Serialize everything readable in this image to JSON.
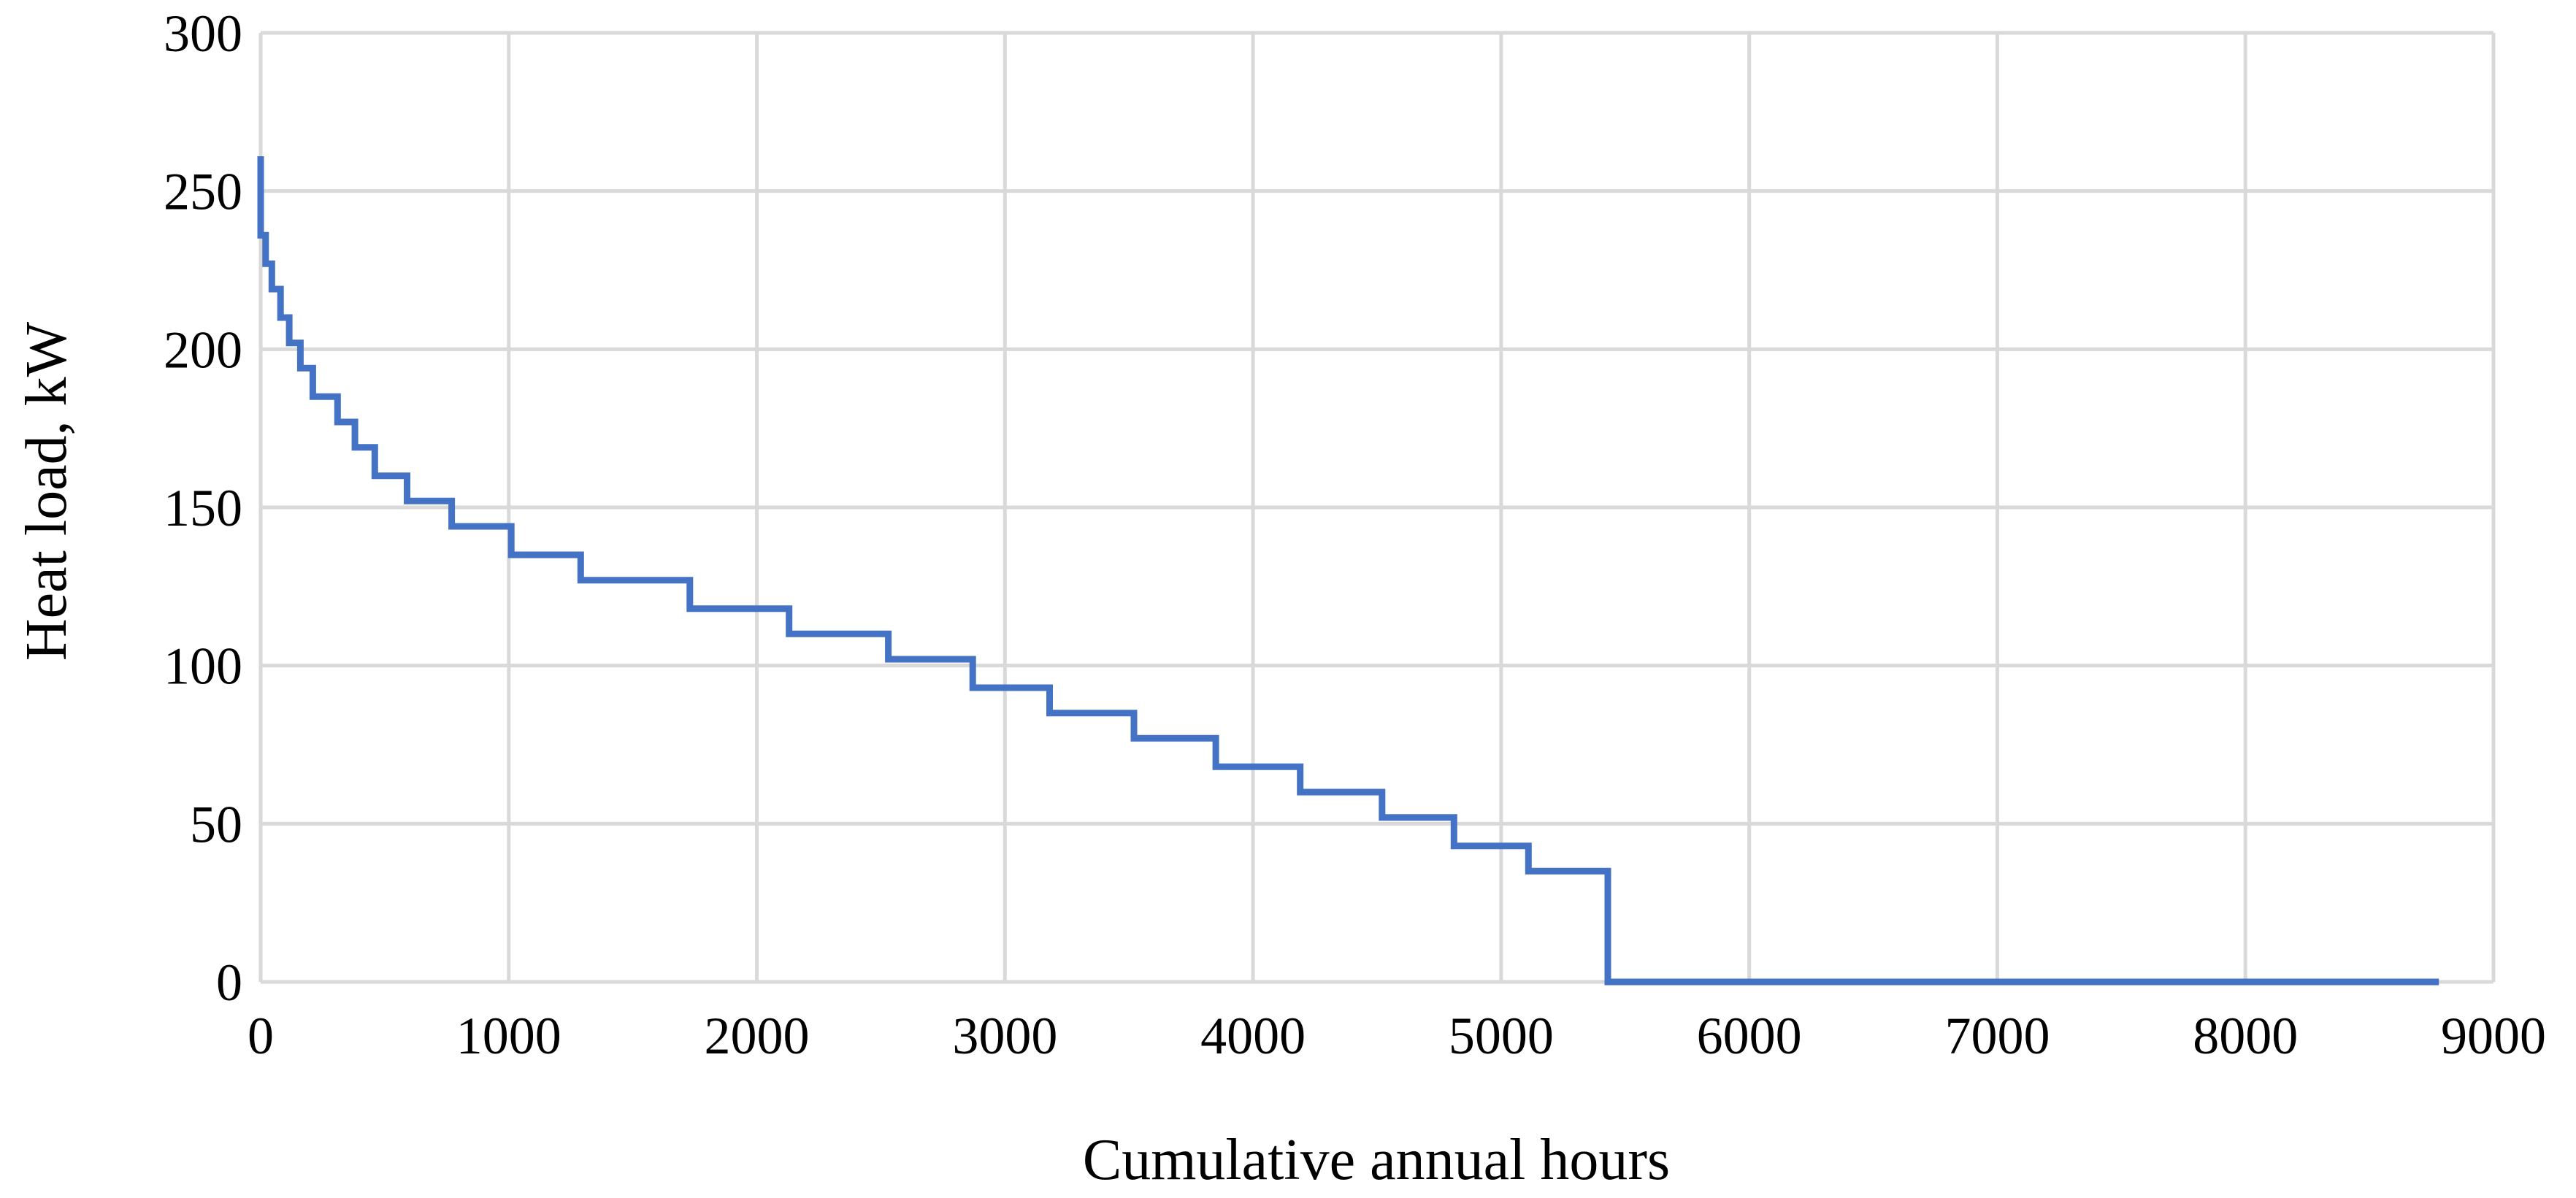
{
  "chart_data": {
    "type": "line",
    "title": "",
    "xlabel": "Cumulative annual hours",
    "ylabel": "Heat load, kW",
    "xlim": [
      0,
      9000
    ],
    "ylim": [
      0,
      300
    ],
    "x_ticks": [
      0,
      1000,
      2000,
      3000,
      4000,
      5000,
      6000,
      7000,
      8000,
      9000
    ],
    "y_ticks": [
      0,
      50,
      100,
      150,
      200,
      250,
      300
    ],
    "grid": true,
    "legend": "none",
    "line_shape": "step",
    "series": [
      {
        "color": "#4472c4",
        "points": [
          [
            0,
            261
          ],
          [
            0,
            236
          ],
          [
            20,
            236
          ],
          [
            20,
            227
          ],
          [
            45,
            227
          ],
          [
            45,
            219
          ],
          [
            80,
            219
          ],
          [
            80,
            210
          ],
          [
            115,
            210
          ],
          [
            115,
            202
          ],
          [
            160,
            202
          ],
          [
            160,
            194
          ],
          [
            210,
            194
          ],
          [
            210,
            185
          ],
          [
            310,
            185
          ],
          [
            310,
            177
          ],
          [
            380,
            177
          ],
          [
            380,
            169
          ],
          [
            460,
            169
          ],
          [
            460,
            160
          ],
          [
            590,
            160
          ],
          [
            590,
            152
          ],
          [
            770,
            152
          ],
          [
            770,
            144
          ],
          [
            1010,
            144
          ],
          [
            1010,
            135
          ],
          [
            1290,
            135
          ],
          [
            1290,
            127
          ],
          [
            1730,
            127
          ],
          [
            1730,
            118
          ],
          [
            2130,
            118
          ],
          [
            2130,
            110
          ],
          [
            2530,
            110
          ],
          [
            2530,
            102
          ],
          [
            2870,
            102
          ],
          [
            2870,
            93
          ],
          [
            3180,
            93
          ],
          [
            3180,
            85
          ],
          [
            3520,
            85
          ],
          [
            3520,
            77
          ],
          [
            3850,
            77
          ],
          [
            3850,
            68
          ],
          [
            4190,
            68
          ],
          [
            4190,
            60
          ],
          [
            4520,
            60
          ],
          [
            4520,
            52
          ],
          [
            4810,
            52
          ],
          [
            4810,
            43
          ],
          [
            5110,
            43
          ],
          [
            5110,
            35
          ],
          [
            5430,
            35
          ],
          [
            5430,
            0
          ],
          [
            8780,
            0
          ]
        ]
      }
    ]
  }
}
